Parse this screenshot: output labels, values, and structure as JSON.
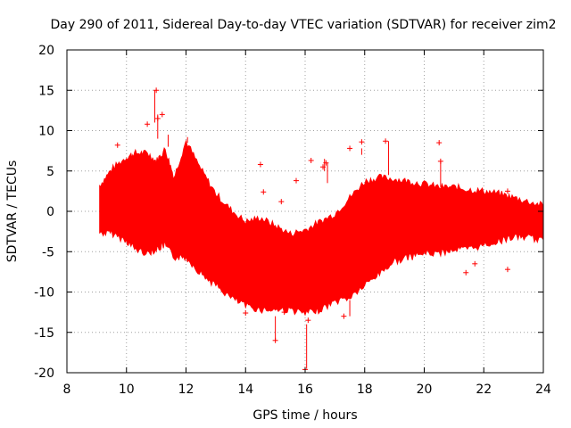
{
  "chart_data": {
    "type": "scatter",
    "title": "Day 290 of 2011, Sidereal Day-to-day VTEC variation (SDTVAR) for receiver zim2",
    "xlabel": "GPS time / hours",
    "ylabel": "SDTVAR / TECUs",
    "xlim": [
      8,
      24
    ],
    "ylim": [
      -20,
      20
    ],
    "xticks": [
      8,
      10,
      12,
      14,
      16,
      18,
      20,
      22,
      24
    ],
    "yticks": [
      -20,
      -15,
      -10,
      -5,
      0,
      5,
      10,
      15,
      20
    ],
    "xtick_labels": [
      "8",
      "10",
      "12",
      "14",
      "16",
      "18",
      "20",
      "22",
      "24"
    ],
    "ytick_labels": [
      "-20",
      "-15",
      "-10",
      "-5",
      "0",
      "5",
      "10",
      "15",
      "20"
    ],
    "grid": true,
    "marker": "+",
    "color": "#ff0000",
    "envelope": {
      "description": "Dense band of points; upper/lower bounds of the main data band (hours, TECU)",
      "x": [
        9.1,
        9.5,
        10.0,
        10.3,
        10.7,
        11.0,
        11.3,
        11.6,
        12.0,
        12.5,
        13.0,
        13.5,
        14.0,
        14.5,
        15.0,
        15.5,
        16.0,
        16.5,
        17.0,
        17.5,
        18.0,
        18.5,
        19.0,
        19.5,
        20.0,
        20.5,
        21.0,
        21.5,
        22.0,
        22.5,
        23.0,
        23.5,
        24.0
      ],
      "upper": [
        3.0,
        5.0,
        6.5,
        7.0,
        7.0,
        6.0,
        7.5,
        4.0,
        8.5,
        5.0,
        2.0,
        0.0,
        -1.5,
        -1.0,
        -2.0,
        -3.0,
        -2.5,
        -1.5,
        -0.5,
        1.5,
        3.5,
        4.0,
        3.8,
        3.5,
        3.2,
        2.8,
        2.8,
        2.5,
        2.3,
        2.0,
        1.5,
        1.0,
        0.5
      ],
      "lower": [
        -2.5,
        -2.5,
        -3.5,
        -4.5,
        -5.0,
        -4.5,
        -4.0,
        -5.5,
        -5.5,
        -7.5,
        -9.0,
        -10.5,
        -11.5,
        -12.0,
        -12.0,
        -12.0,
        -12.5,
        -12.0,
        -11.0,
        -10.5,
        -9.0,
        -7.5,
        -6.0,
        -5.5,
        -5.0,
        -5.0,
        -4.5,
        -4.5,
        -4.0,
        -3.5,
        -3.0,
        -3.0,
        -3.5
      ]
    },
    "outliers": {
      "x": [
        9.7,
        10.7,
        11.0,
        11.05,
        11.2,
        14.0,
        14.5,
        14.6,
        15.0,
        15.2,
        15.3,
        15.7,
        16.0,
        16.1,
        16.2,
        16.6,
        16.7,
        17.3,
        17.5,
        17.9,
        18.7,
        20.5,
        20.55,
        21.4,
        21.7,
        22.8,
        22.8
      ],
      "y": [
        8.2,
        10.8,
        15.0,
        11.5,
        12.0,
        -12.6,
        5.8,
        2.4,
        -16.0,
        1.2,
        -12.5,
        3.8,
        -19.6,
        -13.5,
        6.3,
        5.5,
        6.0,
        -13.0,
        7.8,
        8.6,
        8.7,
        8.5,
        6.2,
        -7.6,
        -6.5,
        -7.2,
        2.5
      ]
    }
  }
}
